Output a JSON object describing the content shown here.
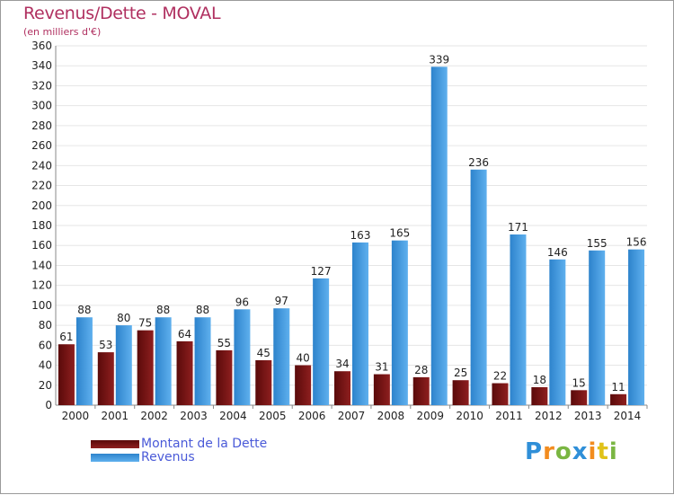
{
  "chart_data": {
    "type": "bar",
    "title": "Revenus/Dette - MOVAL",
    "subtitle": "(en milliers d'€)",
    "categories": [
      "2000",
      "2001",
      "2002",
      "2003",
      "2004",
      "2005",
      "2006",
      "2007",
      "2008",
      "2009",
      "2010",
      "2011",
      "2012",
      "2013",
      "2014"
    ],
    "series": [
      {
        "name": "Montant de la Dette",
        "color": "#7a1414",
        "values": [
          61,
          53,
          75,
          64,
          55,
          45,
          40,
          34,
          31,
          28,
          25,
          22,
          18,
          15,
          11
        ]
      },
      {
        "name": "Revenus",
        "color": "#3d9be0",
        "values": [
          88,
          80,
          88,
          88,
          96,
          97,
          127,
          163,
          165,
          339,
          236,
          171,
          146,
          155,
          156
        ]
      }
    ],
    "ylim": [
      0,
      360
    ],
    "yticks": [
      0,
      20,
      40,
      60,
      80,
      100,
      120,
      140,
      160,
      180,
      200,
      220,
      240,
      260,
      280,
      300,
      320,
      340,
      360
    ],
    "xlabel": "",
    "ylabel": "",
    "grid": true,
    "legend_position": "bottom-left"
  },
  "logo": {
    "letters": [
      "P",
      "r",
      "o",
      "x",
      "i",
      "t",
      "i"
    ]
  }
}
